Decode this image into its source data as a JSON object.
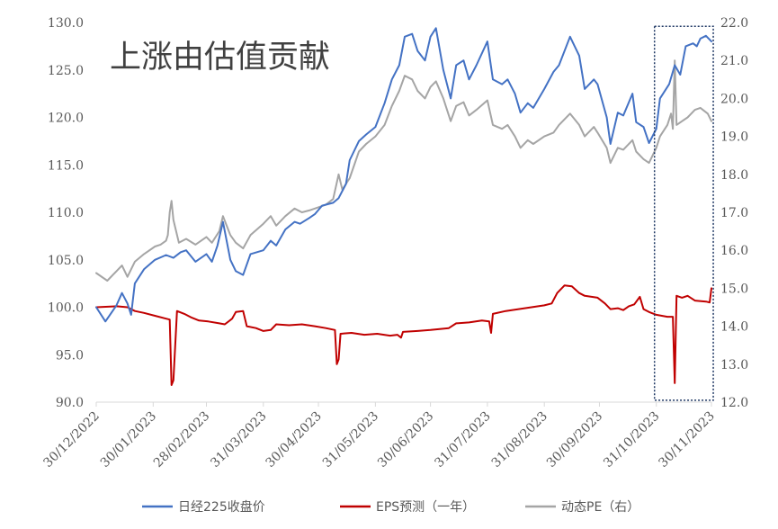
{
  "chart_data": {
    "type": "line",
    "title": "",
    "annotation": "上涨由估值贡献",
    "xlabel": "",
    "ylabel": "",
    "y_left_lim": [
      90,
      130
    ],
    "y_right_lim": [
      12.0,
      22.0
    ],
    "y_left_ticks": [
      "90.0",
      "95.0",
      "100.0",
      "105.0",
      "110.0",
      "115.0",
      "120.0",
      "125.0",
      "130.0"
    ],
    "y_right_ticks": [
      "12.0",
      "13.0",
      "14.0",
      "15.0",
      "16.0",
      "17.0",
      "18.0",
      "19.0",
      "20.0",
      "21.0",
      "22.0"
    ],
    "x_ticks": [
      "30/12/2022",
      "30/01/2023",
      "28/02/2023",
      "31/03/2023",
      "30/04/2023",
      "31/05/2023",
      "30/06/2023",
      "31/07/2023",
      "31/08/2023",
      "30/09/2023",
      "31/10/2023",
      "30/11/2023"
    ],
    "x_range": [
      "2022-12-30",
      "2023-11-30"
    ],
    "grid": false,
    "legend_position": "bottom",
    "highlight_box": {
      "x_start": "2023-10-30",
      "x_end": "2023-12-01",
      "y_range": [
        90.2,
        129.6
      ],
      "style": "dotted"
    },
    "series": [
      {
        "name": "日经225收盘价",
        "axis": "left",
        "color": "#4472C4",
        "points": [
          [
            "2022-12-30",
            100.0
          ],
          [
            "2023-01-04",
            98.5
          ],
          [
            "2023-01-10",
            100.2
          ],
          [
            "2023-01-13",
            101.5
          ],
          [
            "2023-01-16",
            100.4
          ],
          [
            "2023-01-18",
            99.2
          ],
          [
            "2023-01-20",
            102.5
          ],
          [
            "2023-01-25",
            104.0
          ],
          [
            "2023-01-31",
            105.0
          ],
          [
            "2023-02-06",
            105.5
          ],
          [
            "2023-02-10",
            105.2
          ],
          [
            "2023-02-14",
            105.8
          ],
          [
            "2023-02-17",
            106.0
          ],
          [
            "2023-02-22",
            104.8
          ],
          [
            "2023-02-28",
            105.6
          ],
          [
            "2023-03-03",
            104.8
          ],
          [
            "2023-03-06",
            106.5
          ],
          [
            "2023-03-09",
            109.0
          ],
          [
            "2023-03-13",
            105.0
          ],
          [
            "2023-03-16",
            103.8
          ],
          [
            "2023-03-20",
            103.4
          ],
          [
            "2023-03-24",
            105.6
          ],
          [
            "2023-03-31",
            106.0
          ],
          [
            "2023-04-04",
            107.0
          ],
          [
            "2023-04-07",
            106.5
          ],
          [
            "2023-04-12",
            108.2
          ],
          [
            "2023-04-17",
            109.0
          ],
          [
            "2023-04-20",
            108.8
          ],
          [
            "2023-04-25",
            109.4
          ],
          [
            "2023-04-28",
            109.8
          ],
          [
            "2023-05-02",
            110.7
          ],
          [
            "2023-05-08",
            111.0
          ],
          [
            "2023-05-11",
            111.5
          ],
          [
            "2023-05-15",
            113.0
          ],
          [
            "2023-05-17",
            115.5
          ],
          [
            "2023-05-22",
            117.5
          ],
          [
            "2023-05-26",
            118.2
          ],
          [
            "2023-05-31",
            119.0
          ],
          [
            "2023-06-05",
            121.5
          ],
          [
            "2023-06-09",
            124.0
          ],
          [
            "2023-06-13",
            125.5
          ],
          [
            "2023-06-16",
            128.5
          ],
          [
            "2023-06-20",
            128.8
          ],
          [
            "2023-06-23",
            127.0
          ],
          [
            "2023-06-27",
            126.0
          ],
          [
            "2023-06-30",
            128.5
          ],
          [
            "2023-07-03",
            129.4
          ],
          [
            "2023-07-07",
            125.0
          ],
          [
            "2023-07-11",
            122.0
          ],
          [
            "2023-07-14",
            125.5
          ],
          [
            "2023-07-18",
            126.0
          ],
          [
            "2023-07-21",
            124.0
          ],
          [
            "2023-07-25",
            125.5
          ],
          [
            "2023-07-31",
            128.0
          ],
          [
            "2023-08-03",
            124.0
          ],
          [
            "2023-08-08",
            123.5
          ],
          [
            "2023-08-11",
            124.0
          ],
          [
            "2023-08-15",
            122.5
          ],
          [
            "2023-08-18",
            120.5
          ],
          [
            "2023-08-22",
            121.5
          ],
          [
            "2023-08-25",
            121.0
          ],
          [
            "2023-08-31",
            123.0
          ],
          [
            "2023-09-05",
            124.8
          ],
          [
            "2023-09-08",
            125.5
          ],
          [
            "2023-09-14",
            128.5
          ],
          [
            "2023-09-19",
            126.5
          ],
          [
            "2023-09-22",
            123.0
          ],
          [
            "2023-09-27",
            124.0
          ],
          [
            "2023-09-29",
            123.5
          ],
          [
            "2023-10-04",
            120.0
          ],
          [
            "2023-10-06",
            117.2
          ],
          [
            "2023-10-10",
            120.5
          ],
          [
            "2023-10-13",
            120.2
          ],
          [
            "2023-10-18",
            122.5
          ],
          [
            "2023-10-20",
            119.5
          ],
          [
            "2023-10-24",
            119.0
          ],
          [
            "2023-10-27",
            117.3
          ],
          [
            "2023-10-31",
            118.8
          ],
          [
            "2023-11-02",
            122.0
          ],
          [
            "2023-11-07",
            123.5
          ],
          [
            "2023-11-10",
            125.5
          ],
          [
            "2023-11-13",
            124.5
          ],
          [
            "2023-11-16",
            127.5
          ],
          [
            "2023-11-20",
            127.8
          ],
          [
            "2023-11-22",
            127.5
          ],
          [
            "2023-11-24",
            128.3
          ],
          [
            "2023-11-27",
            128.6
          ],
          [
            "2023-11-30",
            128.0
          ]
        ]
      },
      {
        "name": "EPS预测（一年）",
        "axis": "left",
        "color": "#C00000",
        "points": [
          [
            "2022-12-30",
            100.0
          ],
          [
            "2023-01-10",
            100.1
          ],
          [
            "2023-01-16",
            100.0
          ],
          [
            "2023-01-20",
            99.6
          ],
          [
            "2023-01-25",
            99.4
          ],
          [
            "2023-01-31",
            99.1
          ],
          [
            "2023-02-06",
            98.8
          ],
          [
            "2023-02-08",
            98.7
          ],
          [
            "2023-02-09",
            91.8
          ],
          [
            "2023-02-10",
            92.3
          ],
          [
            "2023-02-12",
            99.6
          ],
          [
            "2023-02-16",
            99.3
          ],
          [
            "2023-02-20",
            98.9
          ],
          [
            "2023-02-24",
            98.6
          ],
          [
            "2023-03-01",
            98.5
          ],
          [
            "2023-03-07",
            98.3
          ],
          [
            "2023-03-10",
            98.2
          ],
          [
            "2023-03-14",
            98.8
          ],
          [
            "2023-03-16",
            99.5
          ],
          [
            "2023-03-20",
            99.6
          ],
          [
            "2023-03-22",
            98.0
          ],
          [
            "2023-03-27",
            97.8
          ],
          [
            "2023-03-31",
            97.5
          ],
          [
            "2023-04-04",
            97.6
          ],
          [
            "2023-04-07",
            98.2
          ],
          [
            "2023-04-14",
            98.1
          ],
          [
            "2023-04-21",
            98.2
          ],
          [
            "2023-04-28",
            98.0
          ],
          [
            "2023-05-04",
            97.8
          ],
          [
            "2023-05-09",
            97.6
          ],
          [
            "2023-05-10",
            94.0
          ],
          [
            "2023-05-11",
            94.5
          ],
          [
            "2023-05-12",
            97.2
          ],
          [
            "2023-05-18",
            97.3
          ],
          [
            "2023-05-25",
            97.1
          ],
          [
            "2023-06-01",
            97.2
          ],
          [
            "2023-06-08",
            97.0
          ],
          [
            "2023-06-12",
            97.1
          ],
          [
            "2023-06-14",
            96.8
          ],
          [
            "2023-06-15",
            97.4
          ],
          [
            "2023-06-23",
            97.5
          ],
          [
            "2023-06-30",
            97.6
          ],
          [
            "2023-07-10",
            97.8
          ],
          [
            "2023-07-14",
            98.3
          ],
          [
            "2023-07-21",
            98.4
          ],
          [
            "2023-07-28",
            98.6
          ],
          [
            "2023-08-01",
            98.5
          ],
          [
            "2023-08-02",
            97.3
          ],
          [
            "2023-08-03",
            99.3
          ],
          [
            "2023-08-10",
            99.6
          ],
          [
            "2023-08-17",
            99.8
          ],
          [
            "2023-08-24",
            100.0
          ],
          [
            "2023-08-31",
            100.2
          ],
          [
            "2023-09-04",
            100.4
          ],
          [
            "2023-09-07",
            101.5
          ],
          [
            "2023-09-11",
            102.3
          ],
          [
            "2023-09-15",
            102.2
          ],
          [
            "2023-09-19",
            101.5
          ],
          [
            "2023-09-22",
            101.2
          ],
          [
            "2023-09-29",
            101.0
          ],
          [
            "2023-10-03",
            100.4
          ],
          [
            "2023-10-06",
            99.8
          ],
          [
            "2023-10-10",
            99.9
          ],
          [
            "2023-10-13",
            99.7
          ],
          [
            "2023-10-16",
            100.1
          ],
          [
            "2023-10-19",
            100.3
          ],
          [
            "2023-10-22",
            101.1
          ],
          [
            "2023-10-24",
            99.8
          ],
          [
            "2023-10-27",
            99.5
          ],
          [
            "2023-10-31",
            99.2
          ],
          [
            "2023-11-06",
            99.0
          ],
          [
            "2023-11-09",
            99.0
          ],
          [
            "2023-11-10",
            92.0
          ],
          [
            "2023-11-11",
            101.2
          ],
          [
            "2023-11-14",
            101.0
          ],
          [
            "2023-11-17",
            101.2
          ],
          [
            "2023-11-21",
            100.7
          ],
          [
            "2023-11-27",
            100.6
          ],
          [
            "2023-11-29",
            100.5
          ],
          [
            "2023-11-30",
            102.0
          ]
        ]
      },
      {
        "name": "动态PE（右）",
        "axis": "right",
        "color": "#A5A5A5",
        "points": [
          [
            "2022-12-30",
            15.4
          ],
          [
            "2023-01-05",
            15.2
          ],
          [
            "2023-01-10",
            15.45
          ],
          [
            "2023-01-13",
            15.6
          ],
          [
            "2023-01-16",
            15.3
          ],
          [
            "2023-01-20",
            15.7
          ],
          [
            "2023-01-25",
            15.9
          ],
          [
            "2023-01-31",
            16.1
          ],
          [
            "2023-02-03",
            16.15
          ],
          [
            "2023-02-06",
            16.25
          ],
          [
            "2023-02-07",
            16.4
          ],
          [
            "2023-02-08",
            17.0
          ],
          [
            "2023-02-09",
            17.3
          ],
          [
            "2023-02-10",
            16.8
          ],
          [
            "2023-02-13",
            16.2
          ],
          [
            "2023-02-17",
            16.3
          ],
          [
            "2023-02-22",
            16.15
          ],
          [
            "2023-02-28",
            16.35
          ],
          [
            "2023-03-03",
            16.2
          ],
          [
            "2023-03-07",
            16.5
          ],
          [
            "2023-03-09",
            16.9
          ],
          [
            "2023-03-13",
            16.4
          ],
          [
            "2023-03-16",
            16.2
          ],
          [
            "2023-03-20",
            16.05
          ],
          [
            "2023-03-24",
            16.4
          ],
          [
            "2023-03-31",
            16.7
          ],
          [
            "2023-04-04",
            16.9
          ],
          [
            "2023-04-07",
            16.65
          ],
          [
            "2023-04-12",
            16.9
          ],
          [
            "2023-04-17",
            17.1
          ],
          [
            "2023-04-21",
            17.0
          ],
          [
            "2023-04-25",
            17.05
          ],
          [
            "2023-04-28",
            17.1
          ],
          [
            "2023-05-04",
            17.2
          ],
          [
            "2023-05-08",
            17.35
          ],
          [
            "2023-05-11",
            18.0
          ],
          [
            "2023-05-13",
            17.6
          ],
          [
            "2023-05-17",
            17.9
          ],
          [
            "2023-05-22",
            18.6
          ],
          [
            "2023-05-26",
            18.8
          ],
          [
            "2023-05-31",
            19.0
          ],
          [
            "2023-06-05",
            19.3
          ],
          [
            "2023-06-09",
            19.8
          ],
          [
            "2023-06-13",
            20.2
          ],
          [
            "2023-06-16",
            20.6
          ],
          [
            "2023-06-20",
            20.5
          ],
          [
            "2023-06-23",
            20.2
          ],
          [
            "2023-06-27",
            20.0
          ],
          [
            "2023-06-30",
            20.3
          ],
          [
            "2023-07-03",
            20.45
          ],
          [
            "2023-07-07",
            20.0
          ],
          [
            "2023-07-11",
            19.4
          ],
          [
            "2023-07-14",
            19.8
          ],
          [
            "2023-07-18",
            19.9
          ],
          [
            "2023-07-21",
            19.55
          ],
          [
            "2023-07-25",
            19.7
          ],
          [
            "2023-07-31",
            19.95
          ],
          [
            "2023-08-03",
            19.3
          ],
          [
            "2023-08-08",
            19.2
          ],
          [
            "2023-08-11",
            19.3
          ],
          [
            "2023-08-15",
            19.0
          ],
          [
            "2023-08-18",
            18.7
          ],
          [
            "2023-08-22",
            18.9
          ],
          [
            "2023-08-25",
            18.8
          ],
          [
            "2023-08-31",
            19.0
          ],
          [
            "2023-09-05",
            19.1
          ],
          [
            "2023-09-08",
            19.3
          ],
          [
            "2023-09-14",
            19.6
          ],
          [
            "2023-09-19",
            19.3
          ],
          [
            "2023-09-22",
            19.0
          ],
          [
            "2023-09-27",
            19.25
          ],
          [
            "2023-09-29",
            19.1
          ],
          [
            "2023-10-04",
            18.7
          ],
          [
            "2023-10-06",
            18.3
          ],
          [
            "2023-10-10",
            18.7
          ],
          [
            "2023-10-13",
            18.65
          ],
          [
            "2023-10-18",
            18.9
          ],
          [
            "2023-10-20",
            18.6
          ],
          [
            "2023-10-24",
            18.4
          ],
          [
            "2023-10-27",
            18.3
          ],
          [
            "2023-10-31",
            18.7
          ],
          [
            "2023-11-02",
            19.0
          ],
          [
            "2023-11-06",
            19.3
          ],
          [
            "2023-11-08",
            19.6
          ],
          [
            "2023-11-09",
            19.2
          ],
          [
            "2023-11-10",
            21.0
          ],
          [
            "2023-11-11",
            19.3
          ],
          [
            "2023-11-14",
            19.4
          ],
          [
            "2023-11-17",
            19.5
          ],
          [
            "2023-11-21",
            19.7
          ],
          [
            "2023-11-24",
            19.75
          ],
          [
            "2023-11-28",
            19.6
          ],
          [
            "2023-11-30",
            19.4
          ]
        ]
      }
    ]
  }
}
